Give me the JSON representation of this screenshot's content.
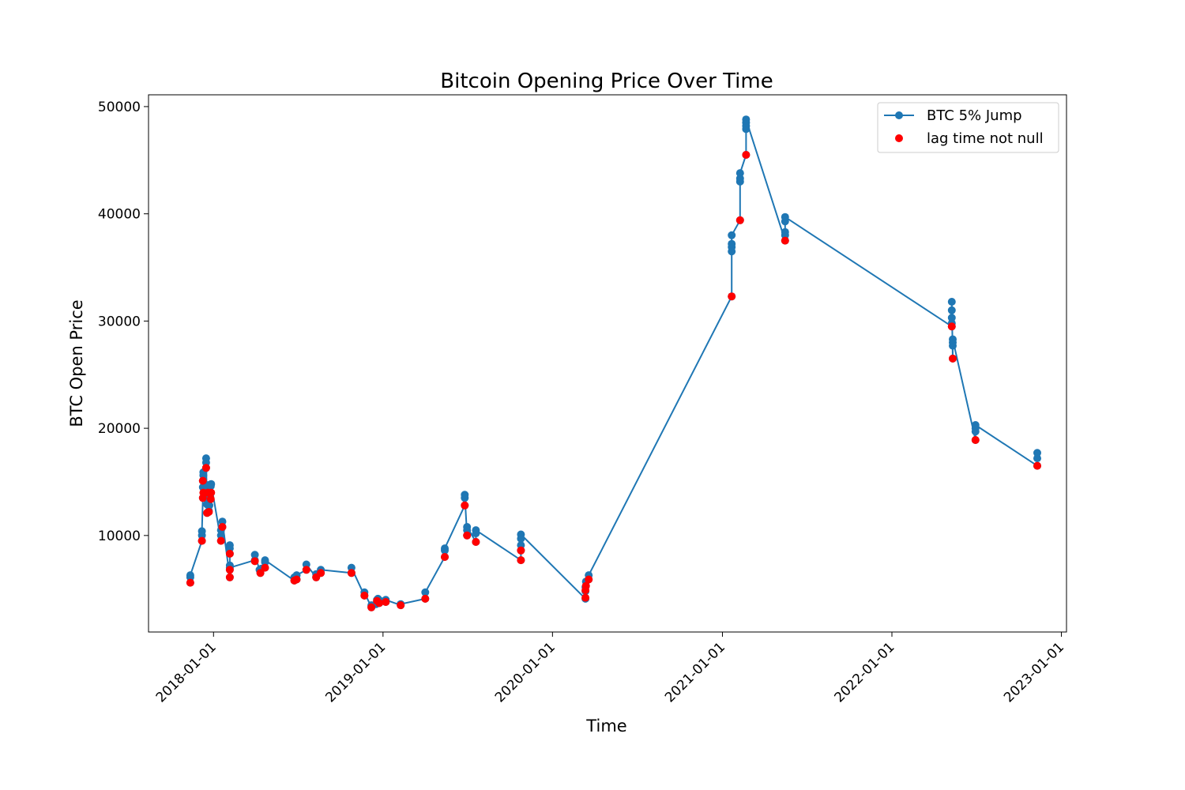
{
  "chart_data": {
    "type": "line",
    "title": "Bitcoin Opening Price Over Time",
    "xlabel": "Time",
    "ylabel": "BTC Open Price",
    "xlim": [
      "2017-08-14",
      "2023-01-12"
    ],
    "ylim": [
      1000,
      51100
    ],
    "x_ticks": [
      "2018-01-01",
      "2019-01-01",
      "2020-01-01",
      "2021-01-01",
      "2022-01-01",
      "2023-01-01"
    ],
    "y_ticks": [
      10000,
      20000,
      30000,
      40000,
      50000
    ],
    "legend_position": "top-right",
    "grid": false,
    "series": [
      {
        "name": "BTC 5% Jump",
        "type": "line-markers",
        "color": "#1f77b4",
        "points": [
          [
            "2017-11-12",
            5600
          ],
          [
            "2017-11-12",
            6100
          ],
          [
            "2017-11-12",
            6300
          ],
          [
            "2017-12-07",
            9500
          ],
          [
            "2017-12-07",
            10000
          ],
          [
            "2017-12-07",
            10400
          ],
          [
            "2017-12-09",
            13500
          ],
          [
            "2017-12-09",
            14500
          ],
          [
            "2017-12-09",
            15100
          ],
          [
            "2017-12-10",
            15600
          ],
          [
            "2017-12-10",
            15900
          ],
          [
            "2017-12-16",
            16300
          ],
          [
            "2017-12-16",
            16800
          ],
          [
            "2017-12-16",
            17200
          ],
          [
            "2017-12-18",
            12100
          ],
          [
            "2017-12-18",
            12900
          ],
          [
            "2017-12-19",
            13300
          ],
          [
            "2017-12-19",
            14100
          ],
          [
            "2017-12-20",
            14700
          ],
          [
            "2017-12-22",
            12300
          ],
          [
            "2017-12-23",
            12800
          ],
          [
            "2017-12-24",
            13500
          ],
          [
            "2017-12-25",
            14000
          ],
          [
            "2017-12-26",
            14600
          ],
          [
            "2017-12-27",
            14800
          ],
          [
            "2018-01-17",
            9500
          ],
          [
            "2018-01-17",
            10000
          ],
          [
            "2018-01-17",
            10500
          ],
          [
            "2018-01-20",
            10800
          ],
          [
            "2018-01-20",
            11300
          ],
          [
            "2018-02-05",
            6100
          ],
          [
            "2018-02-05",
            6800
          ],
          [
            "2018-02-05",
            7200
          ],
          [
            "2018-02-05",
            8300
          ],
          [
            "2018-02-05",
            8800
          ],
          [
            "2018-02-05",
            9100
          ],
          [
            "2018-02-05",
            7000
          ],
          [
            "2018-03-31",
            7700
          ],
          [
            "2018-03-31",
            8200
          ],
          [
            "2018-04-10",
            6800
          ],
          [
            "2018-04-12",
            6500
          ],
          [
            "2018-04-14",
            6900
          ],
          [
            "2018-04-22",
            7000
          ],
          [
            "2018-04-22",
            7500
          ],
          [
            "2018-04-22",
            7700
          ],
          [
            "2018-06-24",
            5800
          ],
          [
            "2018-06-24",
            6100
          ],
          [
            "2018-06-29",
            5900
          ],
          [
            "2018-06-29",
            6300
          ],
          [
            "2018-07-20",
            6800
          ],
          [
            "2018-07-20",
            7300
          ],
          [
            "2018-08-10",
            6100
          ],
          [
            "2018-08-10",
            6400
          ],
          [
            "2018-08-20",
            6500
          ],
          [
            "2018-08-20",
            6800
          ],
          [
            "2018-10-25",
            6500
          ],
          [
            "2018-10-25",
            7000
          ],
          [
            "2018-11-22",
            4400
          ],
          [
            "2018-11-22",
            4700
          ],
          [
            "2018-12-07",
            3300
          ],
          [
            "2018-12-07",
            3500
          ],
          [
            "2018-12-17",
            3600
          ],
          [
            "2018-12-19",
            4000
          ],
          [
            "2018-12-21",
            4100
          ],
          [
            "2018-12-24",
            3700
          ],
          [
            "2018-12-26",
            3900
          ],
          [
            "2019-01-07",
            3800
          ],
          [
            "2019-01-07",
            4000
          ],
          [
            "2019-02-08",
            3500
          ],
          [
            "2019-02-08",
            3600
          ],
          [
            "2019-04-02",
            4100
          ],
          [
            "2019-04-02",
            4700
          ],
          [
            "2019-05-14",
            8000
          ],
          [
            "2019-05-14",
            8600
          ],
          [
            "2019-05-14",
            8800
          ],
          [
            "2019-06-26",
            12800
          ],
          [
            "2019-06-26",
            13500
          ],
          [
            "2019-06-26",
            13800
          ],
          [
            "2019-07-01",
            10000
          ],
          [
            "2019-07-01",
            10500
          ],
          [
            "2019-07-01",
            10800
          ],
          [
            "2019-07-20",
            9400
          ],
          [
            "2019-07-20",
            10200
          ],
          [
            "2019-07-20",
            10500
          ],
          [
            "2019-10-25",
            7700
          ],
          [
            "2019-10-25",
            8600
          ],
          [
            "2019-10-25",
            9100
          ],
          [
            "2019-10-25",
            9700
          ],
          [
            "2019-10-25",
            10100
          ],
          [
            "2020-03-12",
            4100
          ],
          [
            "2020-03-12",
            4800
          ],
          [
            "2020-03-12",
            5200
          ],
          [
            "2020-03-13",
            5300
          ],
          [
            "2020-03-13",
            5700
          ],
          [
            "2020-03-19",
            5900
          ],
          [
            "2020-03-19",
            6300
          ],
          [
            "2021-01-21",
            32300
          ],
          [
            "2021-01-21",
            36500
          ],
          [
            "2021-01-21",
            36900
          ],
          [
            "2021-01-21",
            37200
          ],
          [
            "2021-01-21",
            38000
          ],
          [
            "2021-02-08",
            39400
          ],
          [
            "2021-02-08",
            43000
          ],
          [
            "2021-02-08",
            43300
          ],
          [
            "2021-02-08",
            43800
          ],
          [
            "2021-02-21",
            45500
          ],
          [
            "2021-02-21",
            47900
          ],
          [
            "2021-02-21",
            48200
          ],
          [
            "2021-02-21",
            48500
          ],
          [
            "2021-02-21",
            48800
          ],
          [
            "2021-05-16",
            37500
          ],
          [
            "2021-05-16",
            38000
          ],
          [
            "2021-05-16",
            38300
          ],
          [
            "2021-05-16",
            39300
          ],
          [
            "2021-05-16",
            39700
          ],
          [
            "2022-05-10",
            29500
          ],
          [
            "2022-05-10",
            29800
          ],
          [
            "2022-05-10",
            30300
          ],
          [
            "2022-05-10",
            31000
          ],
          [
            "2022-05-10",
            31800
          ],
          [
            "2022-05-12",
            26500
          ],
          [
            "2022-05-12",
            27700
          ],
          [
            "2022-05-12",
            28000
          ],
          [
            "2022-05-12",
            28300
          ],
          [
            "2022-06-30",
            18900
          ],
          [
            "2022-06-30",
            19700
          ],
          [
            "2022-06-30",
            20000
          ],
          [
            "2022-06-30",
            20300
          ],
          [
            "2022-11-10",
            16500
          ],
          [
            "2022-11-10",
            17200
          ],
          [
            "2022-11-10",
            17700
          ]
        ]
      },
      {
        "name": "lag time not null",
        "type": "scatter",
        "color": "#ff0000",
        "points": [
          [
            "2017-11-12",
            5600
          ],
          [
            "2017-12-07",
            9500
          ],
          [
            "2017-12-09",
            13500
          ],
          [
            "2017-12-09",
            15100
          ],
          [
            "2017-12-10",
            14000
          ],
          [
            "2017-12-16",
            16300
          ],
          [
            "2017-12-18",
            12100
          ],
          [
            "2017-12-20",
            14000
          ],
          [
            "2017-12-22",
            12200
          ],
          [
            "2017-12-26",
            13400
          ],
          [
            "2017-12-27",
            14000
          ],
          [
            "2018-01-17",
            9500
          ],
          [
            "2018-01-20",
            10800
          ],
          [
            "2018-02-05",
            8300
          ],
          [
            "2018-02-05",
            6800
          ],
          [
            "2018-02-05",
            6100
          ],
          [
            "2018-03-31",
            7600
          ],
          [
            "2018-04-12",
            6500
          ],
          [
            "2018-04-22",
            7000
          ],
          [
            "2018-06-24",
            5800
          ],
          [
            "2018-06-29",
            5900
          ],
          [
            "2018-07-20",
            6800
          ],
          [
            "2018-08-10",
            6100
          ],
          [
            "2018-08-20",
            6500
          ],
          [
            "2018-10-25",
            6500
          ],
          [
            "2018-11-22",
            4400
          ],
          [
            "2018-12-07",
            3300
          ],
          [
            "2018-12-19",
            3900
          ],
          [
            "2018-12-24",
            3700
          ],
          [
            "2019-01-07",
            3800
          ],
          [
            "2019-02-08",
            3500
          ],
          [
            "2019-04-02",
            4100
          ],
          [
            "2019-05-14",
            8000
          ],
          [
            "2019-06-26",
            12800
          ],
          [
            "2019-07-01",
            10000
          ],
          [
            "2019-07-20",
            9400
          ],
          [
            "2019-10-25",
            8600
          ],
          [
            "2019-10-25",
            7700
          ],
          [
            "2020-03-12",
            4200
          ],
          [
            "2020-03-12",
            4900
          ],
          [
            "2020-03-13",
            5300
          ],
          [
            "2020-03-19",
            5900
          ],
          [
            "2021-01-21",
            32300
          ],
          [
            "2021-02-08",
            39400
          ],
          [
            "2021-02-21",
            45500
          ],
          [
            "2021-05-16",
            37500
          ],
          [
            "2022-05-10",
            29500
          ],
          [
            "2022-05-12",
            26500
          ],
          [
            "2022-06-30",
            18900
          ],
          [
            "2022-11-10",
            16500
          ]
        ]
      }
    ]
  }
}
